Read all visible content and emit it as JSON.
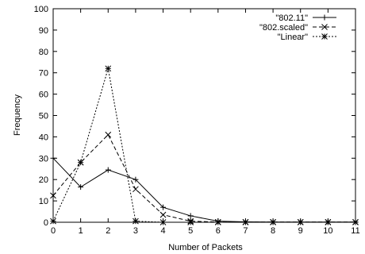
{
  "chart_data": {
    "type": "line",
    "xlabel": "Number of Packets",
    "ylabel": "Frequency",
    "xlim": [
      0,
      11
    ],
    "ylim": [
      0,
      100
    ],
    "x_ticks": [
      0,
      1,
      2,
      3,
      4,
      5,
      6,
      7,
      8,
      9,
      10,
      11
    ],
    "y_ticks": [
      0,
      10,
      20,
      30,
      40,
      50,
      60,
      70,
      80,
      90,
      100
    ],
    "legend_position": "top-right",
    "grid": false,
    "series": [
      {
        "name": "\"802.11\"",
        "marker": "plus",
        "dash": "solid",
        "x": [
          0,
          1,
          2,
          3,
          4,
          5,
          6,
          7,
          8,
          9,
          10,
          11
        ],
        "y": [
          30,
          16.5,
          24.5,
          20,
          7,
          3,
          0.5,
          0.2,
          0.1,
          0.1,
          0.1,
          0.1
        ]
      },
      {
        "name": "\"802.scaled\"",
        "marker": "cross",
        "dash": "dashed",
        "x": [
          0,
          1,
          2,
          3,
          4,
          5,
          6,
          7,
          8,
          9,
          10,
          11
        ],
        "y": [
          12.5,
          28,
          41,
          15.5,
          3.5,
          0.5,
          0.1,
          0.1,
          0.1,
          0.1,
          0.1,
          0.1
        ]
      },
      {
        "name": "\"Linear\"",
        "marker": "star",
        "dash": "dotted",
        "x": [
          0,
          1,
          2,
          3,
          4,
          5,
          6,
          7,
          8,
          9,
          10,
          11
        ],
        "y": [
          0.5,
          28,
          72,
          0.5,
          0,
          0,
          0,
          0,
          0,
          0,
          0,
          0
        ]
      }
    ]
  }
}
